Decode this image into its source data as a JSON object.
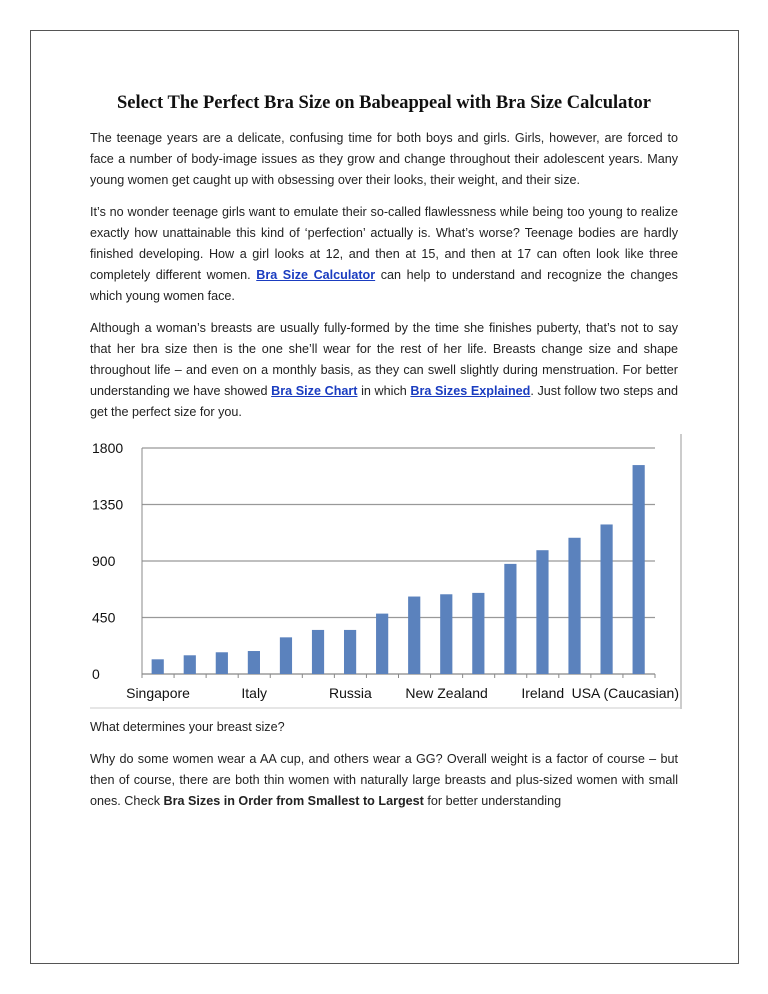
{
  "document": {
    "title": "Select The Perfect Bra Size on Babeappeal with Bra Size Calculator",
    "para1": "The teenage years are a delicate, confusing time for both boys and girls. Girls, however, are forced to face a number of body-image issues as they grow and change throughout their adolescent years. Many young women get caught up with obsessing over their looks, their weight, and their size.",
    "para2_a": "It’s no wonder teenage girls want to emulate their so-called flawlessness while being too young to realize exactly how unattainable this kind of ‘perfection’ actually is. What’s worse? Teenage bodies are hardly finished developing. How a girl looks at 12, and then at 15, and then at 17 can often look like three completely different women. ",
    "para2_link": "Bra Size Calculator",
    "para2_b": " can help to understand and recognize the changes which young women face.",
    "para3_a": "Although a woman’s breasts are usually fully-formed by the time she finishes puberty, that’s not to say that her bra size then is the one she’ll wear for the rest of her life. Breasts change size and shape throughout life – and even on a monthly basis, as they can swell slightly during menstruation. For better understanding we have showed ",
    "para3_link1": "Bra Size Chart",
    "para3_mid": " in which ",
    "para3_link2": "Bra Sizes Explained",
    "para3_b": ". Just follow two steps and get the perfect size for you.",
    "para4": "What determines your breast size?",
    "para5_a": "Why do some women wear a AA cup, and others wear a GG? Overall weight is a factor of course – but then of course, there are both thin women with naturally large breasts and plus-sized women with small ones. Check ",
    "para5_bold": "Bra Sizes in Order from Smallest to Largest",
    "para5_b": " for better understanding"
  },
  "chart_data": {
    "type": "bar",
    "title": "",
    "xlabel": "",
    "ylabel": "",
    "ylim": [
      0,
      1800
    ],
    "yticks": [
      "0",
      "450",
      "900",
      "1350",
      "1800"
    ],
    "grid": true,
    "color": "#5b82bd",
    "categories": [
      "Singapore",
      "",
      "",
      "Italy",
      "",
      "",
      "Russia",
      "",
      "",
      "New Zealand",
      "",
      "",
      "Ireland",
      "",
      "",
      "USA (Caucasian)"
    ],
    "values": [
      117,
      149,
      173,
      183,
      292,
      351,
      351,
      481,
      617,
      635,
      646,
      877,
      986,
      1085,
      1191,
      1664
    ]
  }
}
